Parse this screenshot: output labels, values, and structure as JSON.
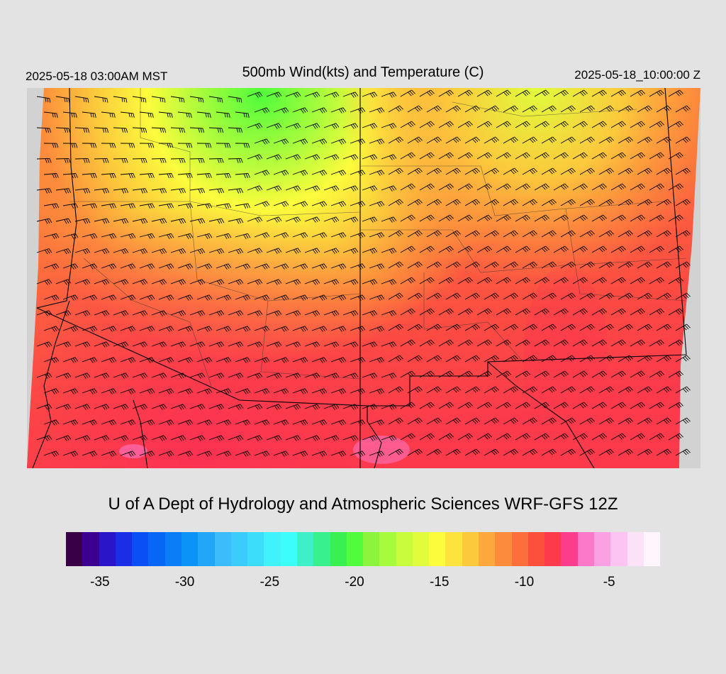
{
  "header": {
    "valid_local": "2025-05-18 03:00AM MST",
    "title": "500mb Wind(kts) and Temperature (C)",
    "valid_utc": "2025-05-18_10:00:00 Z"
  },
  "footer": {
    "credit": "U of A Dept of Hydrology and Atmospheric Sciences WRF-GFS 12Z"
  },
  "colorbar": {
    "colors": [
      "#3a0047",
      "#3c0091",
      "#2a16c8",
      "#1a2ee6",
      "#0a4ff5",
      "#0666f6",
      "#0a7ef6",
      "#0c93f8",
      "#22a6f8",
      "#3cbcfb",
      "#3cccfb",
      "#3cdcfb",
      "#40f2fc",
      "#3cfcfc",
      "#3ef0c8",
      "#38f08e",
      "#38f050",
      "#50fc3c",
      "#8cf43c",
      "#a6fc3c",
      "#c8fc3c",
      "#e0fc3c",
      "#fcfc3c",
      "#fce43c",
      "#fcc83c",
      "#fca83c",
      "#fc8c3c",
      "#fc6e3c",
      "#fc503c",
      "#fc3a4c",
      "#fc3c8c",
      "#fc78c8",
      "#fca0e4",
      "#fcc4f0",
      "#fce2f8",
      "#fef6fc"
    ],
    "ticks": [
      {
        "label": "-35",
        "value": -35
      },
      {
        "label": "-30",
        "value": -30
      },
      {
        "label": "-25",
        "value": -25
      },
      {
        "label": "-20",
        "value": -20
      },
      {
        "label": "-15",
        "value": -15
      },
      {
        "label": "-10",
        "value": -10
      },
      {
        "label": "-5",
        "value": -5
      }
    ],
    "range": [
      -37,
      -2
    ]
  },
  "map": {
    "field": "500mb temperature (C) with wind barbs (kts)",
    "warmest_color": "#fc3a4c",
    "coldest_color": "#50fc3c",
    "boundary_color": "#000000",
    "barb_color": "#000000",
    "outside_domain_color": "#d2d2d2"
  }
}
